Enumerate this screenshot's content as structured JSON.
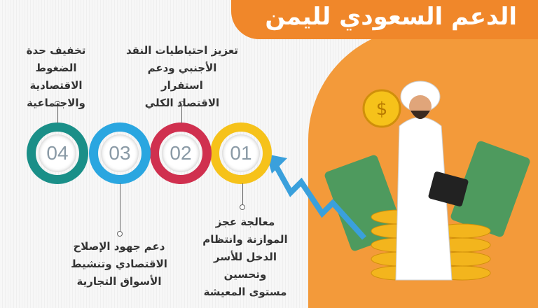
{
  "title": "الدعم السعودي لليمن",
  "steps": [
    {
      "number": "01",
      "color": "#f6c21a",
      "text": [
        "معالجة عجز",
        "الموازنة وانتظام",
        "الدخل للأسر وتحسين",
        "مستوى المعيشة"
      ]
    },
    {
      "number": "02",
      "color": "#d0304f",
      "text": [
        "تعزيز احتياطيات النقد",
        "الأجنبي ودعم استقرار",
        "الاقتصاد الكلي"
      ]
    },
    {
      "number": "03",
      "color": "#2aa6e0",
      "text": [
        "دعم جهود الإصلاح",
        "الاقتصادي وتنشيط",
        "الأسواق التجارية"
      ]
    },
    {
      "number": "04",
      "color": "#1a8f88",
      "text": [
        "تخفيف حدة الضغوط",
        "الاقتصادية",
        "والاجتماعية"
      ]
    }
  ],
  "colors": {
    "accent": "#f0872a"
  }
}
